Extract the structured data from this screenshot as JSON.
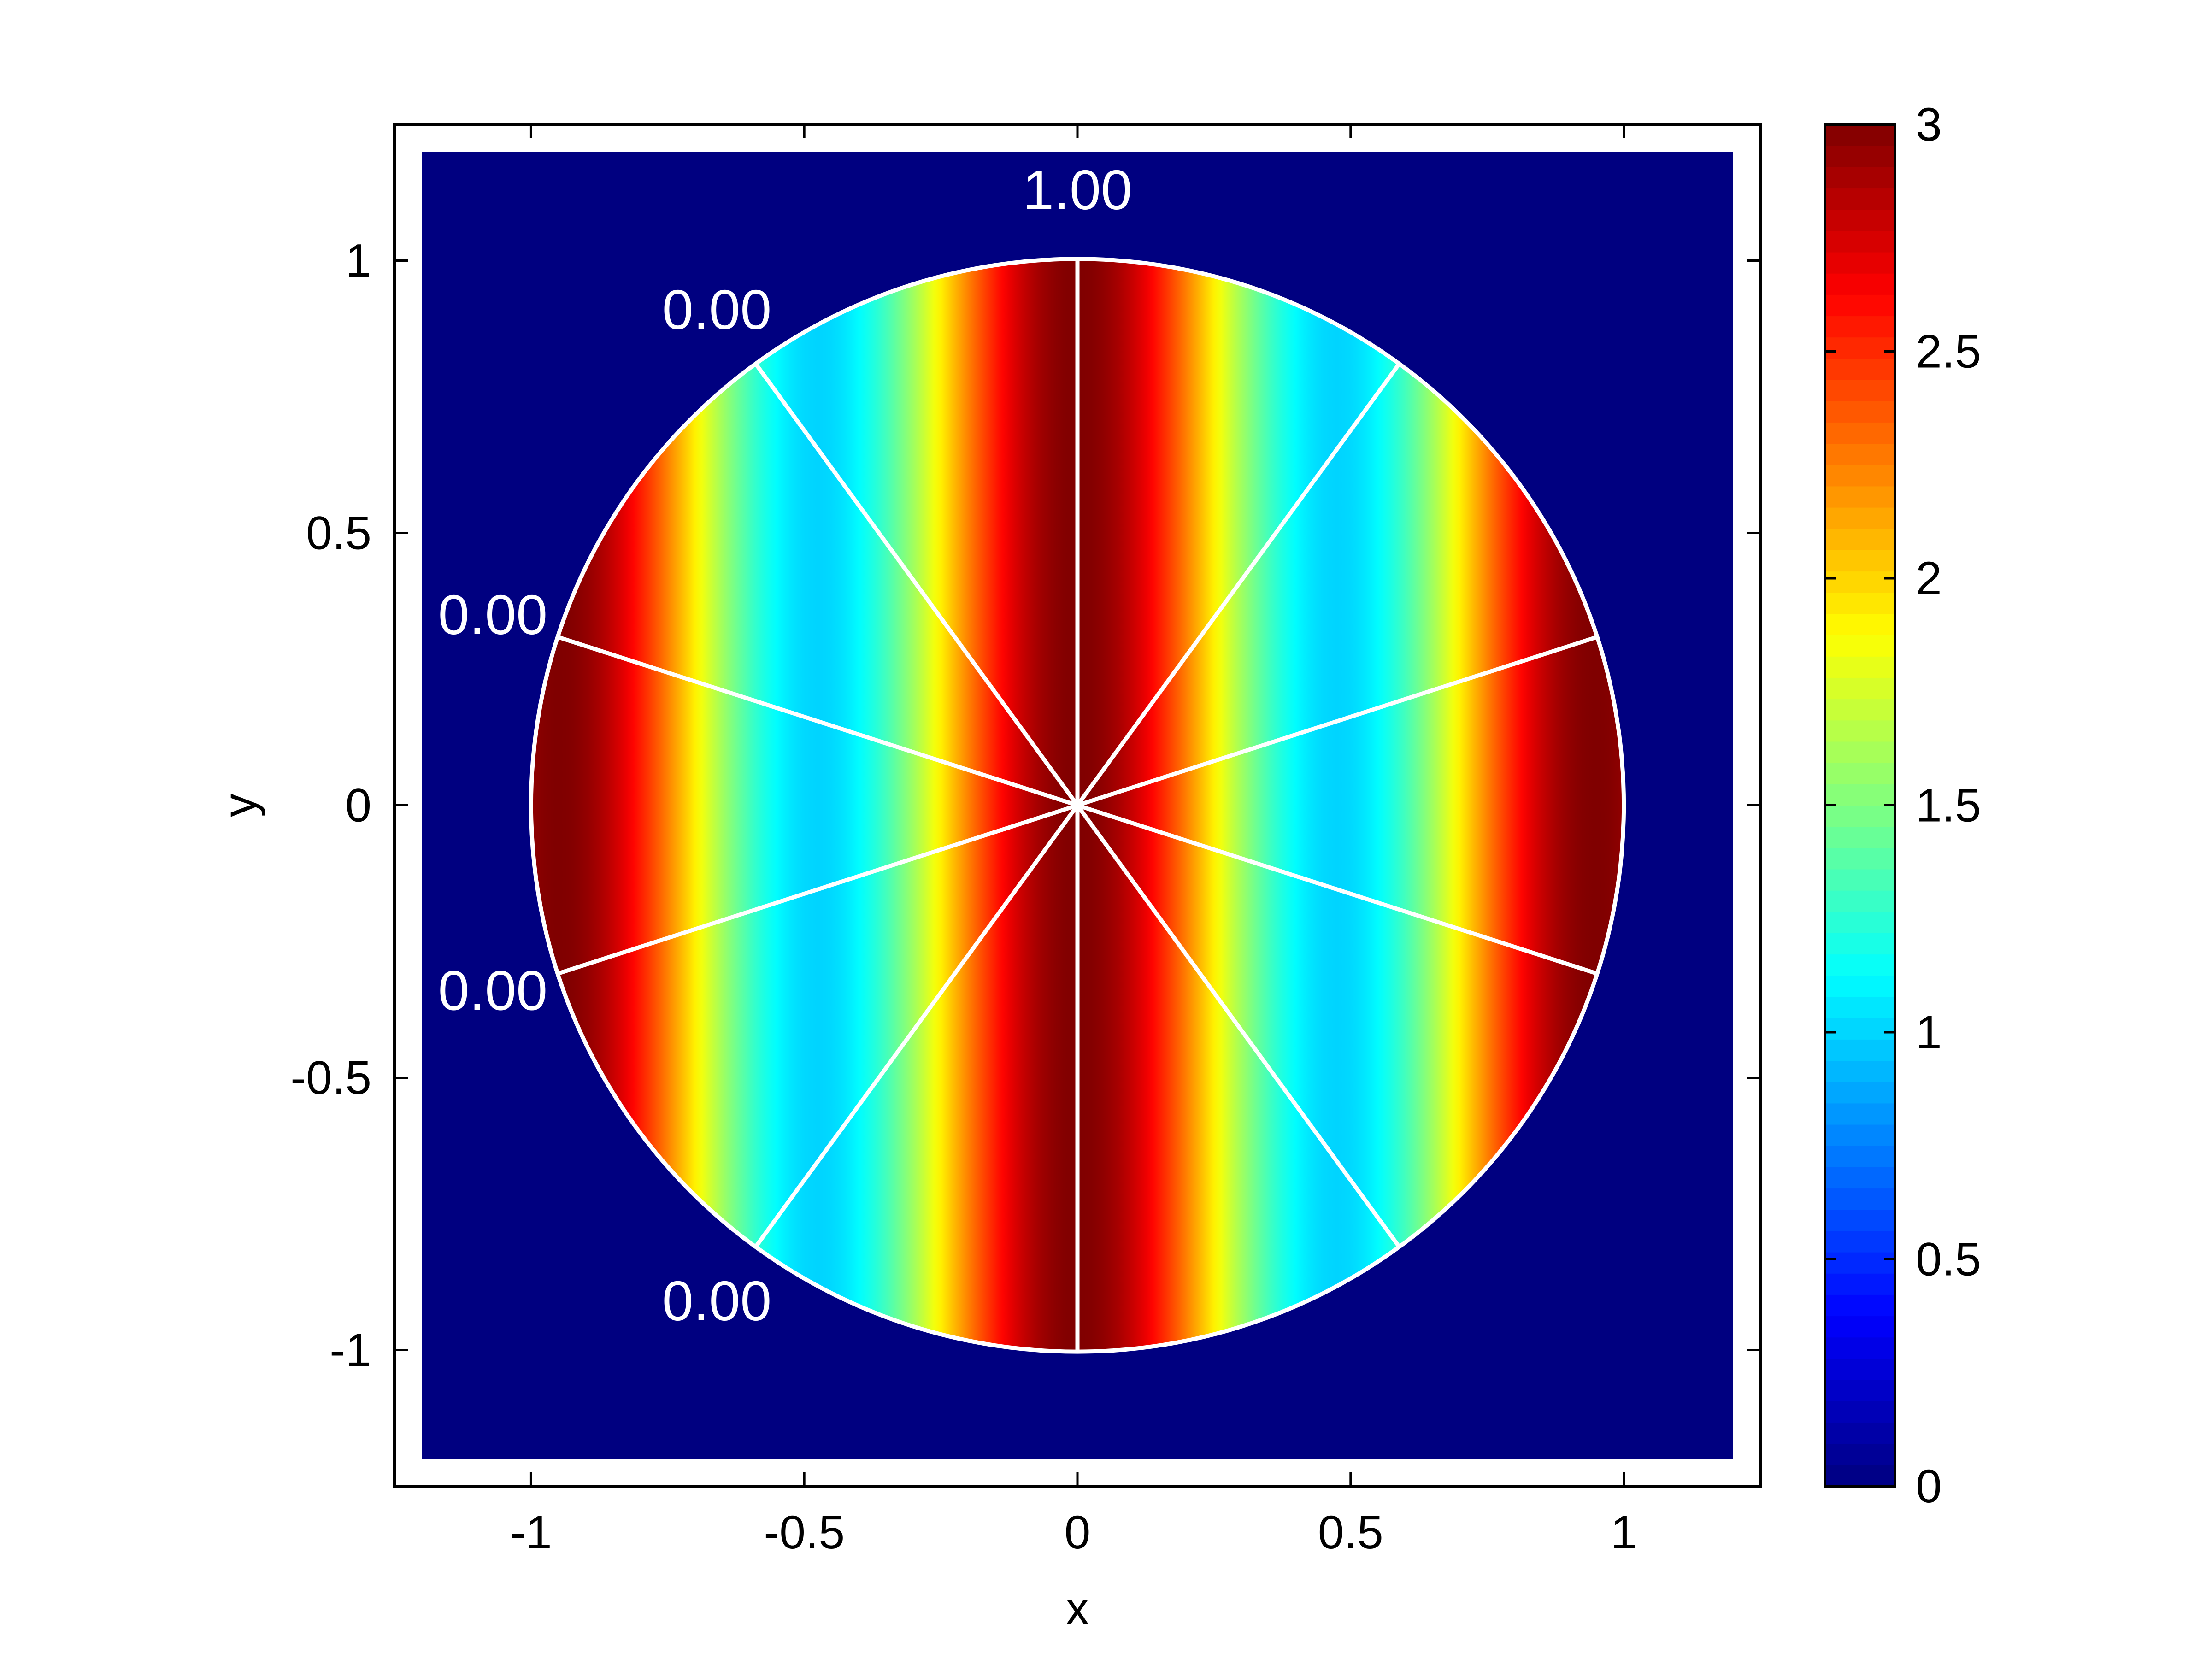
{
  "chart_data": {
    "type": "heatmap",
    "title": "",
    "xlabel": "x",
    "ylabel": "y",
    "xlim": [
      -1.25,
      1.25
    ],
    "ylim": [
      -1.25,
      1.25
    ],
    "field_extent": [
      -1.2,
      1.2
    ],
    "xticks": [
      -1,
      -0.5,
      0,
      0.5,
      1
    ],
    "yticks": [
      -1,
      -0.5,
      0,
      0.5,
      1
    ],
    "xtick_labels": [
      "-1",
      "-0.5",
      "0",
      "0.5",
      "1"
    ],
    "ytick_labels": [
      "-1",
      "-0.5",
      "0",
      "0.5",
      "1"
    ],
    "colorbar": {
      "colormap": "jet",
      "range": [
        0,
        3
      ],
      "ticks": [
        0,
        0.5,
        1,
        1.5,
        2,
        2.5,
        3
      ],
      "tick_labels": [
        "0",
        "0.5",
        "1",
        "1.5",
        "2",
        "2.5",
        "3"
      ]
    },
    "field": {
      "description": "value = 2 + cos(2*pi*x/0.95) inside unit circle, 0 outside",
      "offset": 2,
      "amplitude": 1,
      "period_x": 0.95,
      "radius": 1,
      "outside_value": 0
    },
    "spokes_angles_deg": [
      90,
      126,
      162,
      198,
      234,
      270,
      306,
      342,
      18,
      54
    ],
    "annotations": [
      {
        "text": "1.00",
        "x": 0.0,
        "y": 1.13
      },
      {
        "text": "0.00",
        "x": -0.66,
        "y": 0.91
      },
      {
        "text": "0.00",
        "x": -1.07,
        "y": 0.35
      },
      {
        "text": "0.00",
        "x": -1.07,
        "y": -0.34
      },
      {
        "text": "0.00",
        "x": -0.66,
        "y": -0.91
      }
    ],
    "grid": false
  }
}
